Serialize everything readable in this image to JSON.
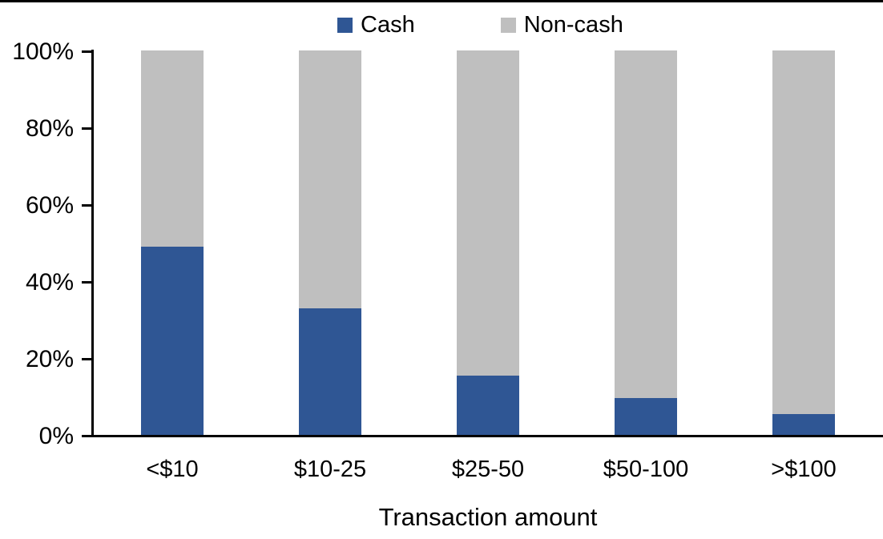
{
  "page": {
    "background": "#ffffff",
    "top_border_color": "#000000",
    "text_color": "#000000"
  },
  "chart_data": {
    "type": "bar",
    "stacked": true,
    "normalized_100pct": true,
    "title": "",
    "xlabel": "Transaction amount",
    "ylabel": "",
    "categories": [
      "<$10",
      "$10-25",
      "$25-50",
      "$50-100",
      ">$100"
    ],
    "series": [
      {
        "name": "Cash",
        "color": "#2F5694",
        "values": [
          49,
          33,
          15.5,
          9.5,
          5.5
        ]
      },
      {
        "name": "Non-cash",
        "color": "#BFBFBF",
        "values": [
          51,
          67,
          84.5,
          90.5,
          94.5
        ]
      }
    ],
    "ylim": [
      0,
      100
    ],
    "y_ticks": [
      "0%",
      "20%",
      "40%",
      "60%",
      "80%",
      "100%"
    ],
    "grid": false,
    "legend_position": "top-center",
    "axis_color": "#000000"
  }
}
